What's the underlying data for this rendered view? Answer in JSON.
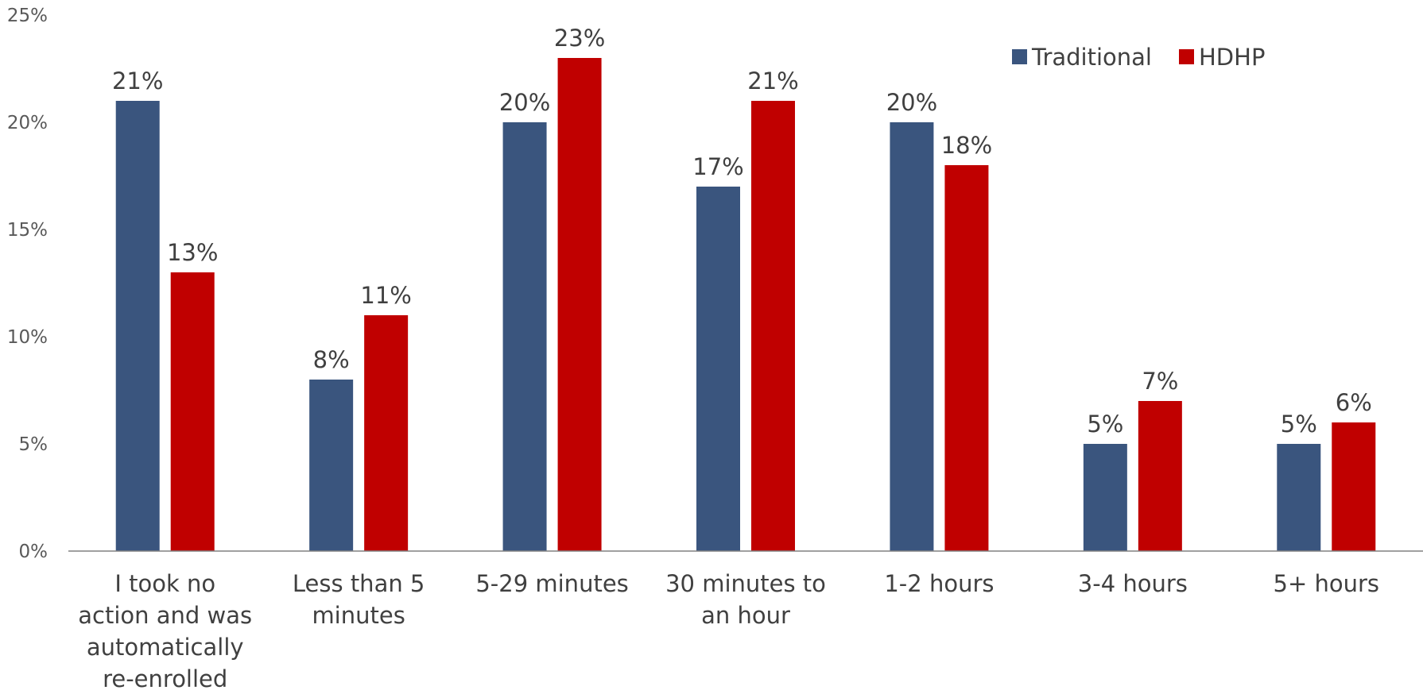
{
  "chart_data": {
    "type": "bar",
    "title": "",
    "xlabel": "",
    "ylabel": "",
    "categories": [
      [
        "I took no",
        "action and was",
        "automatically",
        "re-enrolled"
      ],
      [
        "Less than 5",
        "minutes"
      ],
      [
        "5-29 minutes"
      ],
      [
        "30 minutes to",
        "an hour"
      ],
      [
        "1-2 hours"
      ],
      [
        "3-4 hours"
      ],
      [
        "5+ hours"
      ]
    ],
    "series": [
      {
        "name": "Traditional",
        "color": "#3A557E",
        "values": [
          21,
          8,
          20,
          17,
          20,
          5,
          5
        ]
      },
      {
        "name": "HDHP",
        "color": "#C00000",
        "values": [
          13,
          11,
          23,
          21,
          18,
          7,
          6
        ]
      }
    ],
    "ylim": [
      0,
      25
    ],
    "yticks": [
      0,
      5,
      10,
      15,
      20,
      25
    ],
    "tick_format": "%",
    "data_label_format": "%",
    "grid": false,
    "legend": {
      "placement": "top-right",
      "items": [
        "Traditional",
        "HDHP"
      ]
    }
  }
}
